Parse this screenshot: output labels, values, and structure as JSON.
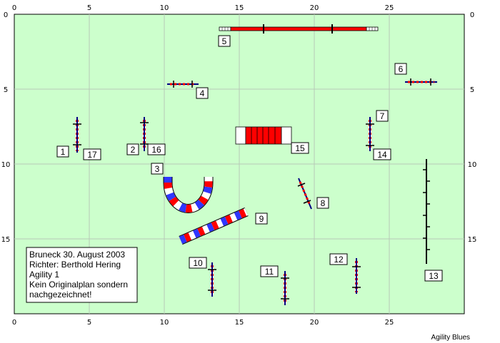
{
  "field": {
    "background": "#ccffcc",
    "grid_color": "#b8c8b8",
    "x_range": [
      0,
      30
    ],
    "y_range": [
      0,
      20
    ]
  },
  "axis": {
    "x_ticks": [
      "0",
      "5",
      "10",
      "15",
      "20",
      "25"
    ],
    "y_ticks": [
      "0",
      "5",
      "10",
      "15"
    ]
  },
  "info": {
    "line1": "Bruneck 30. August 2003",
    "line2": "Richter: Berthold Hering",
    "line3": "Agility 1",
    "line4": "Kein Originalplan sondern",
    "line5": "nachgezeichnet!"
  },
  "credit": "Agility Blues",
  "obstacles": [
    {
      "label": "1",
      "type": "hurdle"
    },
    {
      "label": "2",
      "type": "hurdle"
    },
    {
      "label": "3",
      "type": "tunnel-curved"
    },
    {
      "label": "4",
      "type": "hurdle"
    },
    {
      "label": "5",
      "type": "dogwalk"
    },
    {
      "label": "6",
      "type": "hurdle"
    },
    {
      "label": "7",
      "type": "hurdle"
    },
    {
      "label": "8",
      "type": "hurdle"
    },
    {
      "label": "9",
      "type": "tunnel-straight"
    },
    {
      "label": "10",
      "type": "hurdle"
    },
    {
      "label": "11",
      "type": "hurdle"
    },
    {
      "label": "12",
      "type": "hurdle"
    },
    {
      "label": "13",
      "type": "weave-poles"
    },
    {
      "label": "14",
      "type": "hurdle"
    },
    {
      "label": "15",
      "type": "collapsed-tunnel"
    },
    {
      "label": "16",
      "type": "hurdle"
    },
    {
      "label": "17",
      "type": "hurdle"
    }
  ]
}
